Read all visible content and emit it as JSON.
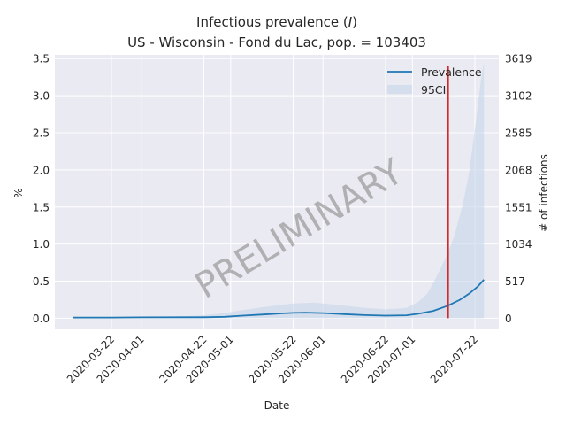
{
  "chart_data": {
    "type": "line",
    "title_line1": "Infectious prevalence (",
    "title_italic": "I",
    "title_line1_end": ")",
    "title_line2": "US - Wisconsin - Fond du Lac, pop. = 103403",
    "xlabel": "Date",
    "ylabel": "%",
    "ylabel_right": "# of infections",
    "ylim": [
      -0.15,
      3.55
    ],
    "xlim": [
      "2020-03-03",
      "2020-07-30"
    ],
    "yticks": [
      0.0,
      0.5,
      1.0,
      1.5,
      2.0,
      2.5,
      3.0,
      3.5
    ],
    "ytick_labels": [
      "0.0",
      "0.5",
      "1.0",
      "1.5",
      "2.0",
      "2.5",
      "3.0",
      "3.5"
    ],
    "ytick_right_labels": [
      "0",
      "517",
      "1034",
      "1551",
      "2068",
      "2585",
      "3102",
      "3619"
    ],
    "xticks": [
      "2020-03-22",
      "2020-04-01",
      "2020-04-22",
      "2020-05-01",
      "2020-05-22",
      "2020-06-01",
      "2020-06-22",
      "2020-07-01",
      "2020-07-22"
    ],
    "xtick_labels": [
      "2020-03-22",
      "2020-04-01",
      "2020-04-22",
      "2020-05-01",
      "2020-05-22",
      "2020-06-01",
      "2020-06-22",
      "2020-07-01",
      "2020-07-22"
    ],
    "grid": true,
    "legend_position": "top-right",
    "watermark": "PRELIMINARY",
    "vline_date": "2020-07-13",
    "series": [
      {
        "name": "Prevalence",
        "color": "#1f77b4",
        "points": [
          [
            "2020-03-09",
            0.01
          ],
          [
            "2020-03-22",
            0.01
          ],
          [
            "2020-04-01",
            0.012
          ],
          [
            "2020-04-15",
            0.013
          ],
          [
            "2020-04-22",
            0.014
          ],
          [
            "2020-04-29",
            0.02
          ],
          [
            "2020-05-05",
            0.035
          ],
          [
            "2020-05-12",
            0.05
          ],
          [
            "2020-05-18",
            0.065
          ],
          [
            "2020-05-22",
            0.072
          ],
          [
            "2020-05-26",
            0.075
          ],
          [
            "2020-06-01",
            0.07
          ],
          [
            "2020-06-08",
            0.055
          ],
          [
            "2020-06-15",
            0.042
          ],
          [
            "2020-06-22",
            0.035
          ],
          [
            "2020-06-29",
            0.04
          ],
          [
            "2020-07-03",
            0.06
          ],
          [
            "2020-07-08",
            0.1
          ],
          [
            "2020-07-13",
            0.17
          ],
          [
            "2020-07-17",
            0.25
          ],
          [
            "2020-07-20",
            0.33
          ],
          [
            "2020-07-23",
            0.43
          ],
          [
            "2020-07-25",
            0.52
          ]
        ]
      },
      {
        "name": "95CI",
        "color": "#c6d6ea",
        "upper": [
          [
            "2020-03-09",
            0.01
          ],
          [
            "2020-03-22",
            0.012
          ],
          [
            "2020-04-01",
            0.015
          ],
          [
            "2020-04-15",
            0.025
          ],
          [
            "2020-04-22",
            0.04
          ],
          [
            "2020-04-29",
            0.07
          ],
          [
            "2020-05-05",
            0.11
          ],
          [
            "2020-05-12",
            0.15
          ],
          [
            "2020-05-18",
            0.18
          ],
          [
            "2020-05-22",
            0.2
          ],
          [
            "2020-05-29",
            0.21
          ],
          [
            "2020-06-01",
            0.2
          ],
          [
            "2020-06-08",
            0.17
          ],
          [
            "2020-06-15",
            0.14
          ],
          [
            "2020-06-22",
            0.12
          ],
          [
            "2020-06-29",
            0.14
          ],
          [
            "2020-07-03",
            0.22
          ],
          [
            "2020-07-06",
            0.33
          ],
          [
            "2020-07-09",
            0.55
          ],
          [
            "2020-07-12",
            0.8
          ],
          [
            "2020-07-15",
            1.1
          ],
          [
            "2020-07-18",
            1.55
          ],
          [
            "2020-07-20",
            1.95
          ],
          [
            "2020-07-22",
            2.55
          ],
          [
            "2020-07-24",
            3.2
          ],
          [
            "2020-07-25",
            3.45
          ]
        ],
        "lower": [
          [
            "2020-03-09",
            0.0
          ],
          [
            "2020-07-25",
            0.0
          ]
        ]
      }
    ],
    "vline_color": "#d62728"
  }
}
